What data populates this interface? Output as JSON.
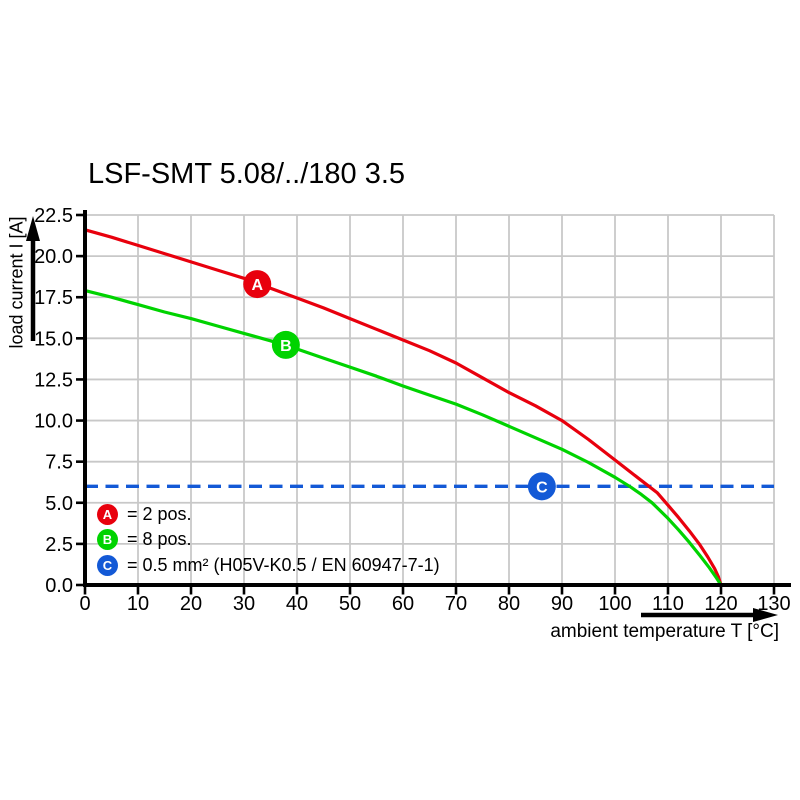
{
  "chart_data": {
    "type": "line",
    "title": "LSF-SMT 5.08/../180 3.5",
    "xlabel": "ambient temperature T [°C]",
    "ylabel": "load current I [A]",
    "xlim": [
      0,
      130
    ],
    "ylim": [
      0,
      22.5
    ],
    "x_ticks": [
      0,
      10,
      20,
      30,
      40,
      50,
      60,
      70,
      80,
      90,
      100,
      110,
      120,
      130
    ],
    "y_ticks": [
      0,
      2.5,
      5,
      7.5,
      10,
      12.5,
      15,
      17.5,
      20,
      22.5
    ],
    "y_tick_labels": [
      "0.0",
      "2.5",
      "5.0",
      "7.5",
      "10.0",
      "12.5",
      "15.0",
      "17.5",
      "20.0",
      "22.5"
    ],
    "grid": true,
    "legend_position": "inside-bottom-left",
    "series": [
      {
        "id": "A",
        "name": "2 pos.",
        "color": "#e8000d",
        "marker": {
          "t": 32.5,
          "i": 18.3
        },
        "points": [
          [
            0,
            21.6
          ],
          [
            5,
            21.15
          ],
          [
            10,
            20.65
          ],
          [
            15,
            20.15
          ],
          [
            20,
            19.65
          ],
          [
            25,
            19.15
          ],
          [
            30,
            18.65
          ],
          [
            35,
            18.05
          ],
          [
            40,
            17.45
          ],
          [
            45,
            16.85
          ],
          [
            50,
            16.2
          ],
          [
            55,
            15.55
          ],
          [
            60,
            14.9
          ],
          [
            65,
            14.25
          ],
          [
            70,
            13.5
          ],
          [
            75,
            12.6
          ],
          [
            80,
            11.7
          ],
          [
            85,
            10.9
          ],
          [
            90,
            10.0
          ],
          [
            95,
            8.85
          ],
          [
            100,
            7.6
          ],
          [
            103,
            6.85
          ],
          [
            106,
            6.1
          ],
          [
            108,
            5.6
          ],
          [
            110,
            4.85
          ],
          [
            112,
            4.1
          ],
          [
            114,
            3.3
          ],
          [
            116,
            2.45
          ],
          [
            117.5,
            1.7
          ],
          [
            118.8,
            1.0
          ],
          [
            119.5,
            0.5
          ],
          [
            120,
            0
          ]
        ]
      },
      {
        "id": "B",
        "name": "8 pos.",
        "color": "#00d300",
        "marker": {
          "t": 37.9,
          "i": 14.6
        },
        "points": [
          [
            0,
            17.9
          ],
          [
            5,
            17.5
          ],
          [
            10,
            17.05
          ],
          [
            15,
            16.6
          ],
          [
            20,
            16.2
          ],
          [
            25,
            15.75
          ],
          [
            30,
            15.3
          ],
          [
            35,
            14.85
          ],
          [
            40,
            14.35
          ],
          [
            45,
            13.8
          ],
          [
            50,
            13.25
          ],
          [
            55,
            12.7
          ],
          [
            60,
            12.1
          ],
          [
            65,
            11.55
          ],
          [
            70,
            11.0
          ],
          [
            75,
            10.35
          ],
          [
            80,
            9.65
          ],
          [
            85,
            8.95
          ],
          [
            90,
            8.25
          ],
          [
            95,
            7.45
          ],
          [
            100,
            6.55
          ],
          [
            103,
            5.95
          ],
          [
            105,
            5.5
          ],
          [
            107,
            5.0
          ],
          [
            110,
            4.05
          ],
          [
            112,
            3.35
          ],
          [
            114,
            2.6
          ],
          [
            116,
            1.8
          ],
          [
            117.8,
            1.05
          ],
          [
            119,
            0.5
          ],
          [
            120,
            0
          ]
        ]
      }
    ],
    "reference_line": {
      "id": "C",
      "value": 6.0,
      "style": "dashed",
      "color": "#1359d6",
      "marker": {
        "t": 86.2,
        "i": 6.0
      }
    },
    "legend": [
      {
        "id": "A",
        "color": "#e8000d",
        "text": "= 2 pos."
      },
      {
        "id": "B",
        "color": "#00d300",
        "text": "= 8 pos."
      },
      {
        "id": "C",
        "color": "#1359d6",
        "text": "= 0.5 mm² (H05V-K0.5 / EN 60947-7-1)"
      }
    ],
    "colors": {
      "grid": "#c8c8c8",
      "axis": "#000000",
      "background": "#ffffff",
      "text": "#000000"
    }
  }
}
